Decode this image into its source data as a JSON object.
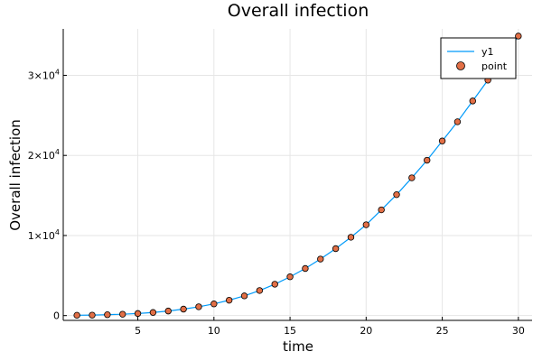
{
  "chart_data": {
    "type": "line",
    "title": "Overall infection",
    "xlabel": "time",
    "ylabel": "Overall infection",
    "xlim": [
      0.1,
      30.9
    ],
    "ylim": [
      -600,
      35800
    ],
    "xticks": [
      5,
      10,
      15,
      20,
      25,
      30
    ],
    "yticks": [
      {
        "value": 0,
        "label": "0",
        "base": "",
        "exp": ""
      },
      {
        "value": 10000,
        "label": "",
        "base": "1×10",
        "exp": "4"
      },
      {
        "value": 20000,
        "label": "",
        "base": "2×10",
        "exp": "4"
      },
      {
        "value": 30000,
        "label": "",
        "base": "3×10",
        "exp": "4"
      }
    ],
    "grid": true,
    "legend_position": "top-right",
    "x": [
      1,
      2,
      3,
      4,
      5,
      6,
      7,
      8,
      9,
      10,
      11,
      12,
      13,
      14,
      15,
      16,
      17,
      18,
      19,
      20,
      21,
      22,
      23,
      24,
      25,
      26,
      27,
      28,
      29,
      30
    ],
    "series": [
      {
        "name": "y1",
        "kind": "line",
        "color": "#009af9",
        "values": [
          40,
          60,
          110,
          170,
          260,
          390,
          570,
          810,
          1100,
          1460,
          1920,
          2460,
          3130,
          3920,
          4840,
          5880,
          7060,
          8360,
          9780,
          11340,
          13200,
          15100,
          17200,
          19400,
          21800,
          24200,
          26800,
          29400,
          32100,
          34900
        ]
      },
      {
        "name": "point",
        "kind": "scatter",
        "color": "#e26f46",
        "values": [
          40,
          60,
          110,
          170,
          260,
          390,
          570,
          810,
          1100,
          1460,
          1920,
          2460,
          3130,
          3920,
          4840,
          5880,
          7060,
          8360,
          9780,
          11340,
          13200,
          15100,
          17200,
          19400,
          21800,
          24200,
          26800,
          29400,
          32100,
          34900
        ]
      }
    ]
  }
}
